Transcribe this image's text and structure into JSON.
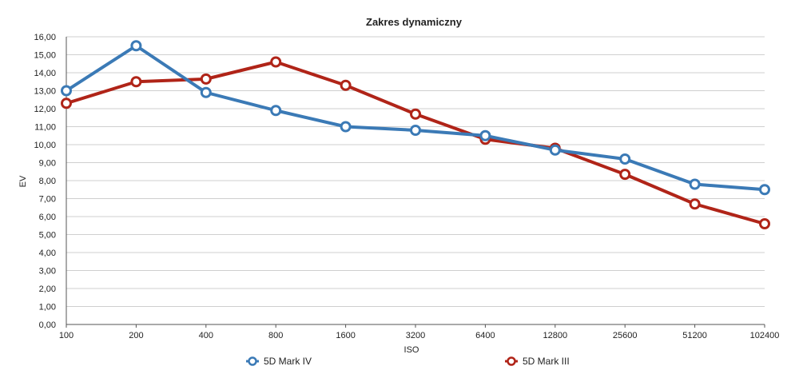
{
  "chart_data": {
    "type": "line",
    "title": "Zakres dynamiczny",
    "xlabel": "ISO",
    "ylabel": "EV",
    "categories": [
      "100",
      "200",
      "400",
      "800",
      "1600",
      "3200",
      "6400",
      "12800",
      "25600",
      "51200",
      "102400"
    ],
    "ylim": [
      0,
      16
    ],
    "yticks": [
      "0,00",
      "1,00",
      "2,00",
      "3,00",
      "4,00",
      "5,00",
      "6,00",
      "7,00",
      "8,00",
      "9,00",
      "10,00",
      "11,00",
      "12,00",
      "13,00",
      "14,00",
      "15,00",
      "16,00"
    ],
    "grid": true,
    "legend_position": "bottom",
    "series": [
      {
        "name": "5D Mark IV",
        "color": "#3b7ab6",
        "values": [
          13.0,
          15.5,
          12.9,
          11.9,
          11.0,
          10.8,
          10.5,
          9.7,
          9.2,
          7.8,
          7.5
        ]
      },
      {
        "name": "5D Mark III",
        "color": "#b02418",
        "values": [
          12.3,
          13.5,
          13.65,
          14.6,
          13.3,
          11.7,
          10.3,
          9.8,
          8.35,
          6.7,
          5.6
        ]
      }
    ]
  }
}
